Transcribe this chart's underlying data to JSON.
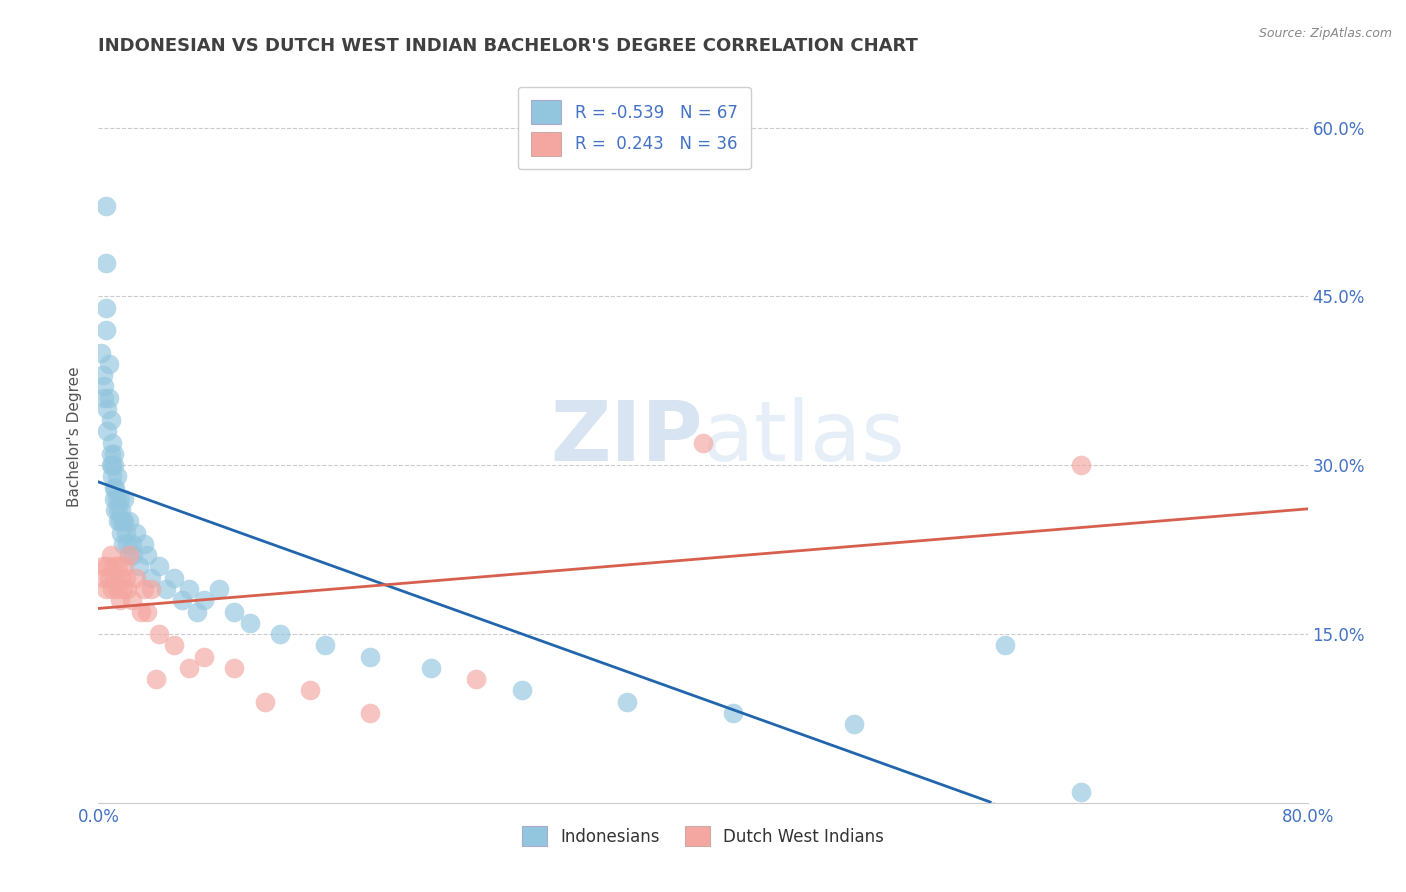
{
  "title": "INDONESIAN VS DUTCH WEST INDIAN BACHELOR'S DEGREE CORRELATION CHART",
  "source": "Source: ZipAtlas.com",
  "ylabel": "Bachelor's Degree",
  "xlim": [
    0.0,
    0.8
  ],
  "ylim": [
    0.0,
    0.65
  ],
  "ytick_values": [
    0.15,
    0.3,
    0.45,
    0.6
  ],
  "ytick_labels": [
    "15.0%",
    "30.0%",
    "45.0%",
    "60.0%"
  ],
  "R_blue": -0.539,
  "N_blue": 67,
  "R_pink": 0.243,
  "N_pink": 36,
  "blue_dot_color": "#92c5de",
  "pink_dot_color": "#f4a6a0",
  "blue_line_color": "#2166ac",
  "pink_line_color": "#d6604d",
  "label_color": "#4472c4",
  "title_color": "#404040",
  "source_color": "#888888",
  "grid_color": "#cccccc",
  "background_color": "#ffffff",
  "watermark_color": "#d5e8f5",
  "blue_x": [
    0.002,
    0.003,
    0.004,
    0.004,
    0.005,
    0.005,
    0.005,
    0.005,
    0.006,
    0.006,
    0.007,
    0.007,
    0.008,
    0.008,
    0.008,
    0.009,
    0.009,
    0.009,
    0.01,
    0.01,
    0.01,
    0.01,
    0.011,
    0.011,
    0.012,
    0.012,
    0.013,
    0.013,
    0.014,
    0.014,
    0.015,
    0.015,
    0.016,
    0.016,
    0.017,
    0.017,
    0.018,
    0.019,
    0.02,
    0.02,
    0.022,
    0.023,
    0.025,
    0.027,
    0.03,
    0.032,
    0.035,
    0.04,
    0.045,
    0.05,
    0.055,
    0.06,
    0.065,
    0.07,
    0.08,
    0.09,
    0.1,
    0.12,
    0.15,
    0.18,
    0.22,
    0.28,
    0.35,
    0.42,
    0.5,
    0.6,
    0.65
  ],
  "blue_y": [
    0.4,
    0.38,
    0.37,
    0.36,
    0.42,
    0.44,
    0.48,
    0.53,
    0.35,
    0.33,
    0.39,
    0.36,
    0.34,
    0.31,
    0.3,
    0.32,
    0.3,
    0.29,
    0.31,
    0.3,
    0.28,
    0.27,
    0.28,
    0.26,
    0.29,
    0.27,
    0.26,
    0.25,
    0.27,
    0.25,
    0.26,
    0.24,
    0.25,
    0.23,
    0.27,
    0.25,
    0.24,
    0.23,
    0.25,
    0.22,
    0.23,
    0.22,
    0.24,
    0.21,
    0.23,
    0.22,
    0.2,
    0.21,
    0.19,
    0.2,
    0.18,
    0.19,
    0.17,
    0.18,
    0.19,
    0.17,
    0.16,
    0.15,
    0.14,
    0.13,
    0.12,
    0.1,
    0.09,
    0.08,
    0.07,
    0.14,
    0.01
  ],
  "pink_x": [
    0.003,
    0.004,
    0.005,
    0.006,
    0.007,
    0.008,
    0.009,
    0.01,
    0.011,
    0.012,
    0.013,
    0.014,
    0.015,
    0.016,
    0.017,
    0.018,
    0.019,
    0.02,
    0.022,
    0.025,
    0.028,
    0.03,
    0.032,
    0.035,
    0.038,
    0.04,
    0.05,
    0.06,
    0.07,
    0.09,
    0.11,
    0.14,
    0.18,
    0.25,
    0.4,
    0.65
  ],
  "pink_y": [
    0.21,
    0.2,
    0.19,
    0.21,
    0.2,
    0.22,
    0.19,
    0.21,
    0.2,
    0.19,
    0.21,
    0.18,
    0.2,
    0.19,
    0.21,
    0.2,
    0.19,
    0.22,
    0.18,
    0.2,
    0.17,
    0.19,
    0.17,
    0.19,
    0.11,
    0.15,
    0.14,
    0.12,
    0.13,
    0.12,
    0.09,
    0.1,
    0.08,
    0.11,
    0.32,
    0.3
  ]
}
